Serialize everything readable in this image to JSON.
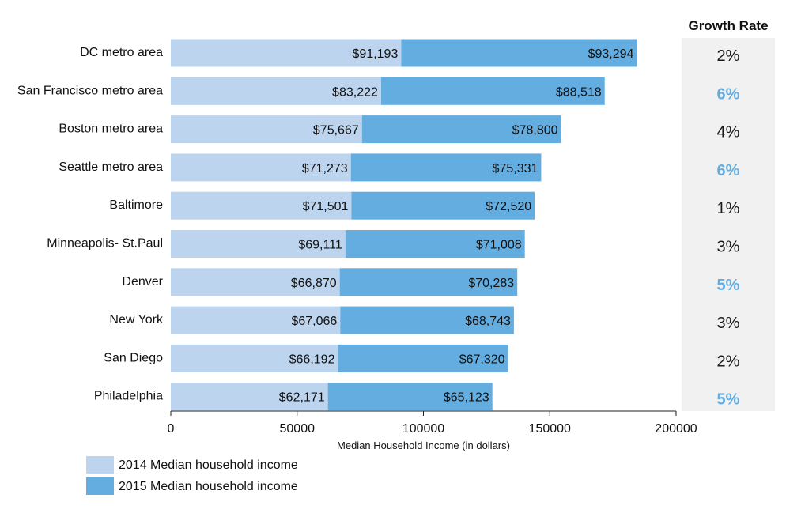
{
  "chart_data": {
    "type": "bar",
    "orientation": "horizontal",
    "layout": "overlapping-stacked",
    "xlabel": "Median Household Income (in dollars)",
    "xlim": [
      0,
      200000
    ],
    "x_ticks": [
      "0",
      "50000",
      "100000",
      "150000",
      "200000"
    ],
    "categories": [
      "DC metro area",
      "San Francisco metro area",
      "Boston metro area",
      "Seattle metro area",
      "Baltimore",
      "Minneapolis- St.Paul",
      "Denver",
      "New York",
      "San Diego",
      "Philadelphia"
    ],
    "series": [
      {
        "name": "2014 Median household income",
        "color": "#bdd4ee",
        "values": [
          91193,
          83222,
          75667,
          71273,
          71501,
          69111,
          66870,
          67066,
          66192,
          62171
        ],
        "labels": [
          "$91,193",
          "$83,222",
          "$75,667",
          "$71,273",
          "$71,501",
          "$69,111",
          "$66,870",
          "$67,066",
          "$66,192",
          "$62,171"
        ]
      },
      {
        "name": "2015 Median household income",
        "color": "#63ade0",
        "values": [
          93294,
          88518,
          78800,
          75331,
          72520,
          71008,
          70283,
          68743,
          67320,
          65123
        ],
        "labels": [
          "$93,294",
          "$88,518",
          "$78,800",
          "$75,331",
          "$72,520",
          "$71,008",
          "$70,283",
          "$68,743",
          "$67,320",
          "$65,123"
        ]
      }
    ],
    "growth_rate": {
      "title": "Growth Rate",
      "values": [
        "2%",
        "6%",
        "4%",
        "6%",
        "1%",
        "3%",
        "5%",
        "3%",
        "2%",
        "5%"
      ],
      "highlighted": [
        false,
        true,
        false,
        true,
        false,
        false,
        true,
        false,
        false,
        true
      ],
      "highlight_color": "#63ade0",
      "text_color": "#1a1a1a",
      "panel_color": "#f1f1f1"
    },
    "legend": {
      "position": "bottom-left",
      "entries": [
        "2014 Median household income",
        "2015 Median household income"
      ]
    },
    "grid": false
  }
}
